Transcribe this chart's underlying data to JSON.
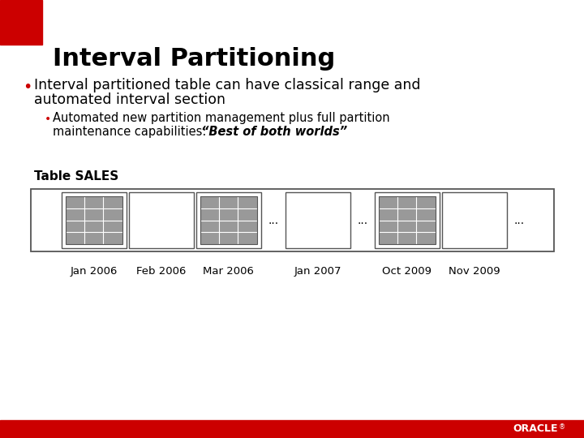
{
  "title": "Interval Partitioning",
  "bullet1_line1": "Interval partitioned table can have classical range and",
  "bullet1_line2": "automated interval section",
  "bullet2_line1": "Automated new partition management plus full partition",
  "bullet2_line2_normal": "maintenance capabilities: ",
  "bullet2_line2_bold_italic": "“Best of both worlds”",
  "table_label": "Table SALES",
  "partition_labels": [
    "Jan 2006",
    "Feb 2006",
    "Mar 2006",
    "Jan 2007",
    "Oct 2009",
    "Nov 2009"
  ],
  "has_grid": [
    true,
    false,
    true,
    false,
    true,
    false
  ],
  "bg_color": "#ffffff",
  "title_color": "#000000",
  "red_color": "#cc0000",
  "grid_fill": "#999999",
  "grid_line_color": "#ffffff",
  "box_border": "#555555",
  "oracle_text_color": "#ffffff",
  "oracle_bar_color": "#cc0000"
}
